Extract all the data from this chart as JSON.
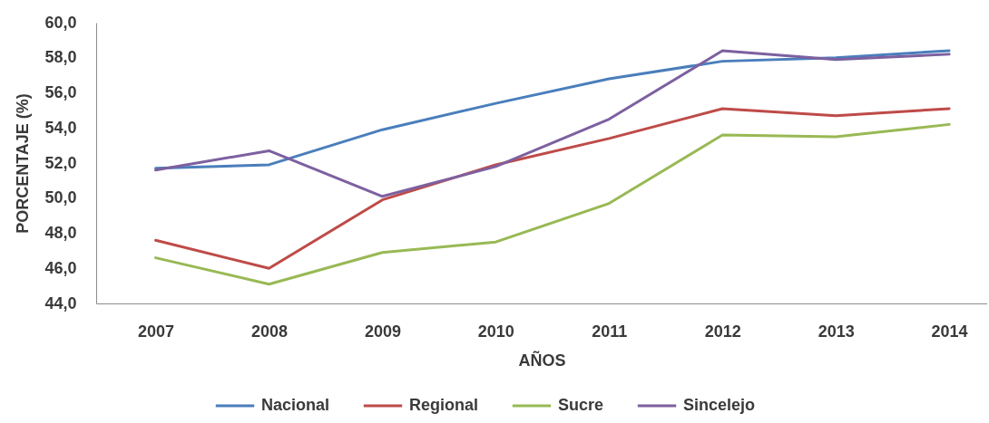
{
  "chart_data": {
    "type": "line",
    "xlabel": "AÑOS",
    "ylabel": "PORCENTAJE (%)",
    "categories": [
      "2007",
      "2008",
      "2009",
      "2010",
      "2011",
      "2012",
      "2013",
      "2014"
    ],
    "series": [
      {
        "name": "Nacional",
        "color": "#4a7ebb",
        "values": [
          51.7,
          51.9,
          53.9,
          55.4,
          56.8,
          57.8,
          58.0,
          58.4
        ]
      },
      {
        "name": "Regional",
        "color": "#be4b48",
        "values": [
          47.6,
          46.0,
          49.9,
          51.9,
          53.4,
          55.1,
          54.7,
          55.1
        ]
      },
      {
        "name": "Sucre",
        "color": "#98b954",
        "values": [
          46.6,
          45.1,
          46.9,
          47.5,
          49.7,
          53.6,
          53.5,
          54.2
        ]
      },
      {
        "name": "Sincelejo",
        "color": "#7d60a0",
        "values": [
          51.6,
          52.7,
          50.1,
          51.8,
          54.5,
          58.4,
          57.9,
          58.2
        ]
      }
    ],
    "ylim": [
      44,
      60
    ],
    "yticks": [
      {
        "value": 44,
        "label": "44,0"
      },
      {
        "value": 46,
        "label": "46,0"
      },
      {
        "value": 48,
        "label": "48,0"
      },
      {
        "value": 50,
        "label": "50,0"
      },
      {
        "value": 52,
        "label": "52,0"
      },
      {
        "value": 54,
        "label": "54,0"
      },
      {
        "value": 56,
        "label": "56,0"
      },
      {
        "value": 58,
        "label": "58,0"
      },
      {
        "value": 60,
        "label": "60,0"
      }
    ],
    "grid": false,
    "legend": "bottom",
    "line_style": "solid",
    "marker": "none"
  }
}
